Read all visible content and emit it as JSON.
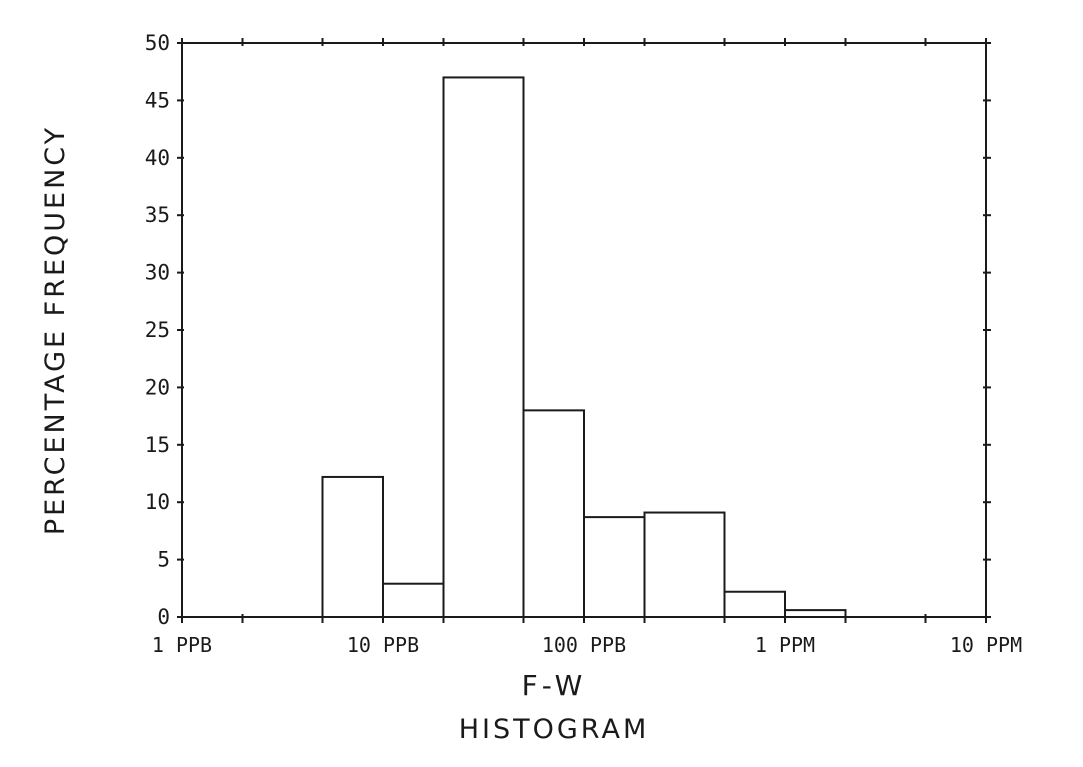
{
  "chart_data": {
    "type": "bar",
    "title": "HISTOGRAM",
    "xlabel": "F-W",
    "ylabel": "PERCENTAGE FREQUENCY",
    "x_scale": "log",
    "x_unit": "PPB",
    "xlim": [
      1,
      10000
    ],
    "ylim": [
      0,
      50
    ],
    "grid": false,
    "y_ticks": [
      0,
      5,
      10,
      15,
      20,
      25,
      30,
      35,
      40,
      45,
      50
    ],
    "x_tick_labels": [
      {
        "value": 1,
        "label": "1 PPB"
      },
      {
        "value": 10,
        "label": "10 PPB"
      },
      {
        "value": 100,
        "label": "100 PPB"
      },
      {
        "value": 1000,
        "label": "1 PPM"
      },
      {
        "value": 10000,
        "label": "10 PPM"
      }
    ],
    "x_minor_ticks": [
      2,
      5,
      20,
      50,
      200,
      500,
      2000,
      5000
    ],
    "bins": [
      {
        "from": 5,
        "to": 10,
        "value": 12.2
      },
      {
        "from": 10,
        "to": 20,
        "value": 2.9
      },
      {
        "from": 20,
        "to": 50,
        "value": 47
      },
      {
        "from": 50,
        "to": 100,
        "value": 18
      },
      {
        "from": 100,
        "to": 200,
        "value": 8.7
      },
      {
        "from": 200,
        "to": 500,
        "value": 9.1
      },
      {
        "from": 500,
        "to": 1000,
        "value": 2.2
      },
      {
        "from": 1000,
        "to": 2000,
        "value": 0.6
      }
    ],
    "colors": {
      "ink": "#1a1a1a",
      "background": "#ffffff"
    }
  }
}
